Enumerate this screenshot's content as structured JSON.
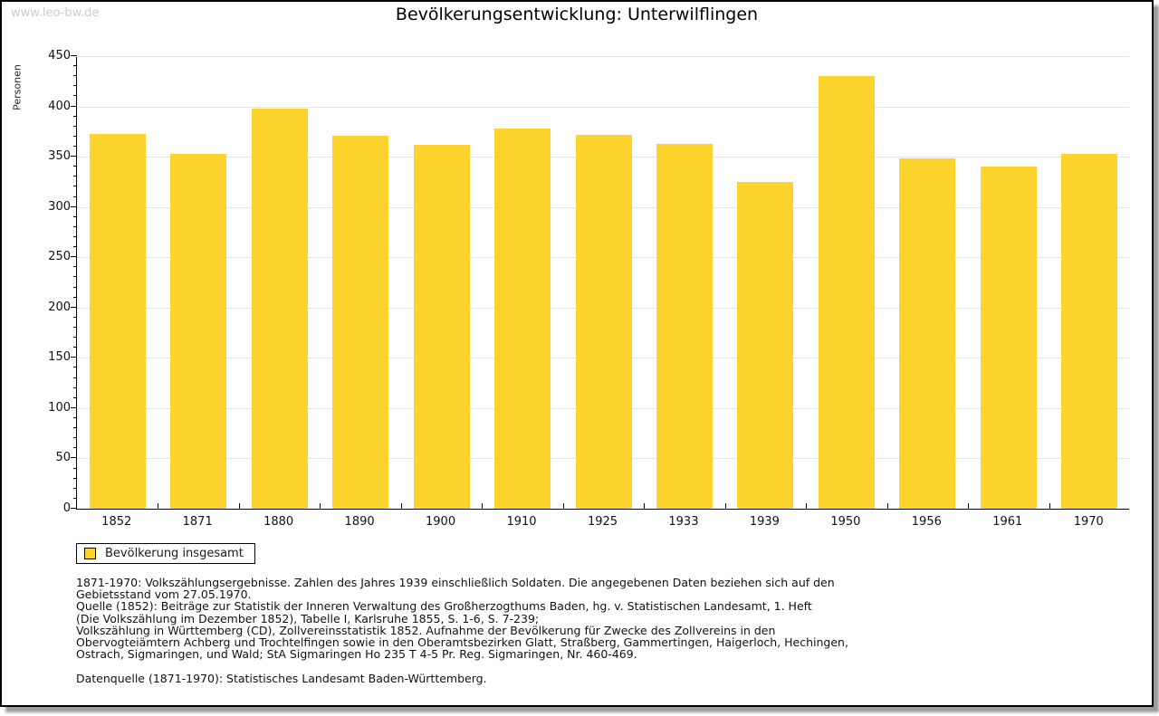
{
  "watermark": "www.leo-bw.de",
  "title": "Bevölkerungsentwicklung: Unterwilflingen",
  "chart_data": {
    "type": "bar",
    "title": "Bevölkerungsentwicklung: Unterwilflingen",
    "categories": [
      "1852",
      "1871",
      "1880",
      "1890",
      "1900",
      "1910",
      "1925",
      "1933",
      "1939",
      "1950",
      "1956",
      "1961",
      "1970"
    ],
    "values": [
      373,
      353,
      398,
      371,
      362,
      378,
      372,
      363,
      325,
      430,
      348,
      340,
      353
    ],
    "series": [
      {
        "name": "Bevölkerung insgesamt",
        "values": [
          373,
          353,
          398,
          371,
          362,
          378,
          372,
          363,
          325,
          430,
          348,
          340,
          353
        ]
      }
    ],
    "xlabel": "",
    "ylabel": "Personen",
    "ylim": [
      0,
      450
    ],
    "y_major_step": 50,
    "y_minor_step": 10,
    "grid": true,
    "legend_position": "bottom-left",
    "bar_color": "#fcd42d"
  },
  "legend": {
    "label": "Bevölkerung insgesamt"
  },
  "footnotes": {
    "lines": [
      "1871-1970: Volkszählungsergebnisse. Zahlen des Jahres 1939 einschließlich Soldaten. Die angegebenen Daten beziehen sich auf den",
      "Gebietsstand vom 27.05.1970.",
      "Quelle (1852): Beiträge zur Statistik der Inneren Verwaltung des Großherzogthums Baden, hg. v. Statistischen Landesamt, 1. Heft",
      "(Die Volkszählung im Dezember 1852), Tabelle I, Karlsruhe 1855, S. 1-6, S. 7-239;",
      "Volkszählung in Württemberg (CD), Zollvereinsstatistik 1852. Aufnahme der Bevölkerung für Zwecke des Zollvereins in den",
      "Obervogteiämtern Achberg und Trochtelfingen sowie in den Oberamtsbezirken Glatt, Straßberg, Gammertingen, Haigerloch, Hechingen,",
      "Ostrach, Sigmaringen, und Wald; StA Sigmaringen Ho 235 T 4-5 Pr. Reg. Sigmaringen, Nr. 460-469."
    ],
    "datasource": "Datenquelle (1871-1970): Statistisches Landesamt Baden-Württemberg."
  },
  "colors": {
    "bar": "#fcd42d",
    "gridline": "#e4e4e4",
    "axis": "#000000",
    "watermark": "#cccccc",
    "frame_border": "#000000",
    "frame_shadow": "#9c9c9c"
  }
}
